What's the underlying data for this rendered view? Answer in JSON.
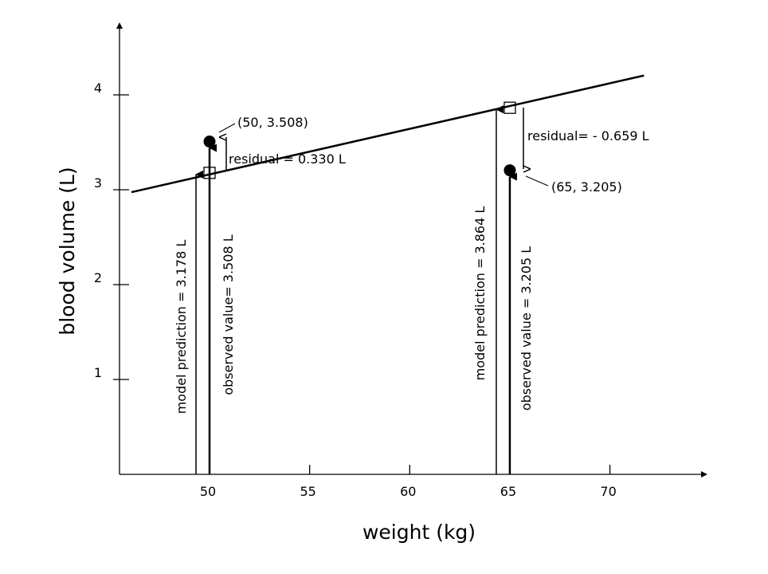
{
  "chart_data": {
    "type": "scatter",
    "xlabel": "weight (kg)",
    "ylabel": "blood volume (L)",
    "xlim": [
      45.5,
      75
    ],
    "ylim": [
      0,
      4.8
    ],
    "x_ticks": [
      50,
      55,
      60,
      65,
      70
    ],
    "y_ticks": [
      1,
      2,
      3,
      4
    ],
    "grid": false,
    "regression_line": {
      "intercept_at_50": 3.178,
      "slope": 0.04573,
      "x_range": [
        46.1,
        71.7
      ]
    },
    "points": [
      {
        "x": 50,
        "y": 3.508,
        "label": "(50, 3.508)"
      },
      {
        "x": 65,
        "y": 3.205,
        "label": "(65, 3.205)"
      }
    ],
    "predictions": [
      {
        "x": 50,
        "y": 3.178
      },
      {
        "x": 65,
        "y": 3.864
      }
    ],
    "annotations": {
      "residual_1": "residual = 0.330 L",
      "residual_2": "residual= - 0.659 L",
      "model_prediction_1": "model prediction = 3.178 L",
      "observed_value_1": "observed value= 3.508 L",
      "model_prediction_2": "model prediction = 3.864 L",
      "observed_value_2": "observed value = 3.205 L"
    }
  }
}
